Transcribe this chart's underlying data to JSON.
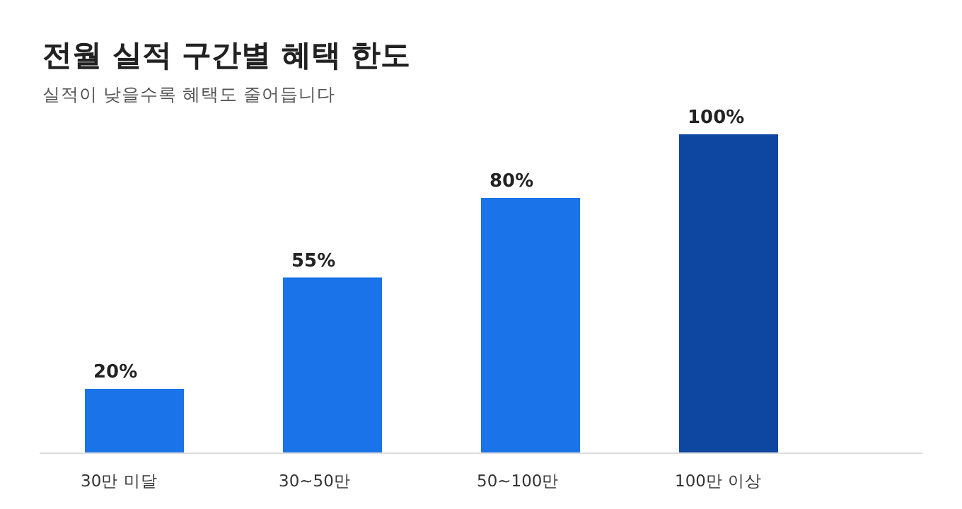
{
  "chart_data": {
    "type": "bar",
    "title": "전월 실적 구간별 혜택 한도",
    "subtitle": "실적이 낮을수록 혜택도 줄어듭니다",
    "categories": [
      "30만 미달",
      "30~50만",
      "50~100만",
      "100만 이상"
    ],
    "values": [
      20,
      55,
      80,
      100
    ],
    "value_labels": [
      "20%",
      "55%",
      "80%",
      "100%"
    ],
    "colors": [
      "#1a73e8",
      "#1a73e8",
      "#1a73e8",
      "#0d47a1"
    ]
  }
}
